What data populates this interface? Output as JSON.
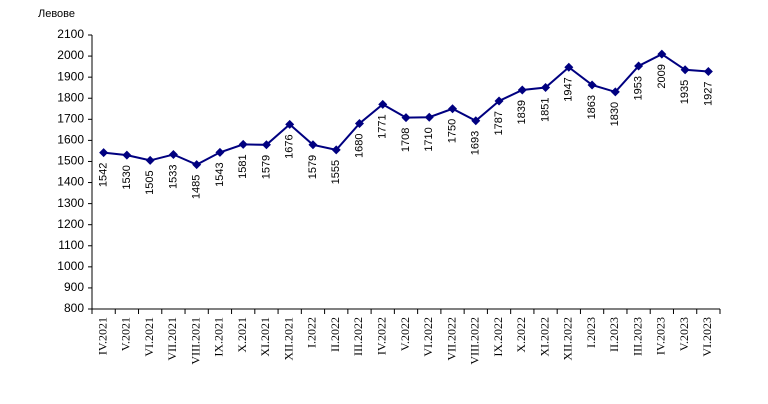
{
  "chart_data": {
    "type": "line",
    "y_label": "Левове",
    "categories": [
      "IV.2021",
      "V.2021",
      "VI.2021",
      "VII.2021",
      "VIII.2021",
      "IX.2021",
      "X.2021",
      "XI.2021",
      "XII.2021",
      "I.2022",
      "II.2022",
      "III.2022",
      "IV.2022",
      "V.2022",
      "VI.2022",
      "VII.2022",
      "VIII.2022",
      "IX.2022",
      "X.2022",
      "XI.2022",
      "XII.2022",
      "I.2023",
      "II.2023",
      "III.2023",
      "IV.2023",
      "V.2023",
      "VI.2023"
    ],
    "values": [
      1542,
      1530,
      1505,
      1533,
      1485,
      1543,
      1581,
      1579,
      1676,
      1579,
      1555,
      1680,
      1771,
      1708,
      1710,
      1750,
      1693,
      1787,
      1839,
      1851,
      1947,
      1863,
      1830,
      1953,
      2009,
      1935,
      1927
    ],
    "color": "#000080",
    "ylim": [
      800,
      2100
    ],
    "yticks": [
      800,
      900,
      1000,
      1100,
      1200,
      1300,
      1400,
      1500,
      1600,
      1700,
      1800,
      1900,
      2000,
      2100
    ],
    "grid": false
  }
}
